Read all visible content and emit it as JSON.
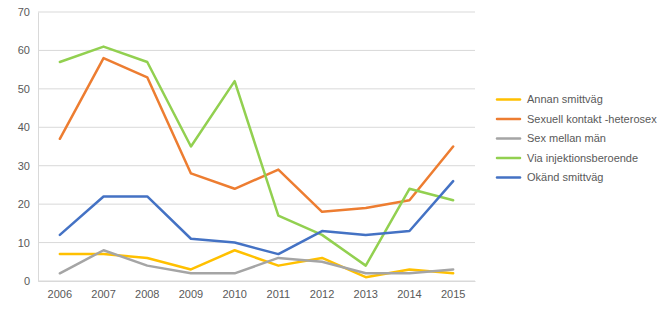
{
  "chart_data": {
    "type": "line",
    "categories": [
      "2006",
      "2007",
      "2008",
      "2009",
      "2010",
      "2011",
      "2012",
      "2013",
      "2014",
      "2015"
    ],
    "series": [
      {
        "name": "Annan smittväg",
        "color": "#ffc000",
        "values": [
          7,
          7,
          6,
          3,
          8,
          4,
          6,
          1,
          3,
          2
        ]
      },
      {
        "name": "Sexuell kontakt -heterosex",
        "color": "#ed7d31",
        "values": [
          37,
          58,
          53,
          28,
          24,
          29,
          18,
          19,
          21,
          35
        ]
      },
      {
        "name": "Sex mellan män",
        "color": "#a5a5a5",
        "values": [
          2,
          8,
          4,
          2,
          2,
          6,
          5,
          2,
          2,
          3
        ]
      },
      {
        "name": "Via injektionsberoende",
        "color": "#92d050",
        "values": [
          57,
          61,
          57,
          35,
          52,
          17,
          12,
          4,
          24,
          21
        ]
      },
      {
        "name": "Okänd smittväg",
        "color": "#4472c4",
        "values": [
          12,
          22,
          22,
          11,
          10,
          7,
          13,
          12,
          13,
          26
        ]
      }
    ],
    "ylim": [
      0,
      70
    ],
    "yticks": [
      0,
      10,
      20,
      30,
      40,
      50,
      60,
      70
    ],
    "grid": true,
    "legend": "right"
  }
}
